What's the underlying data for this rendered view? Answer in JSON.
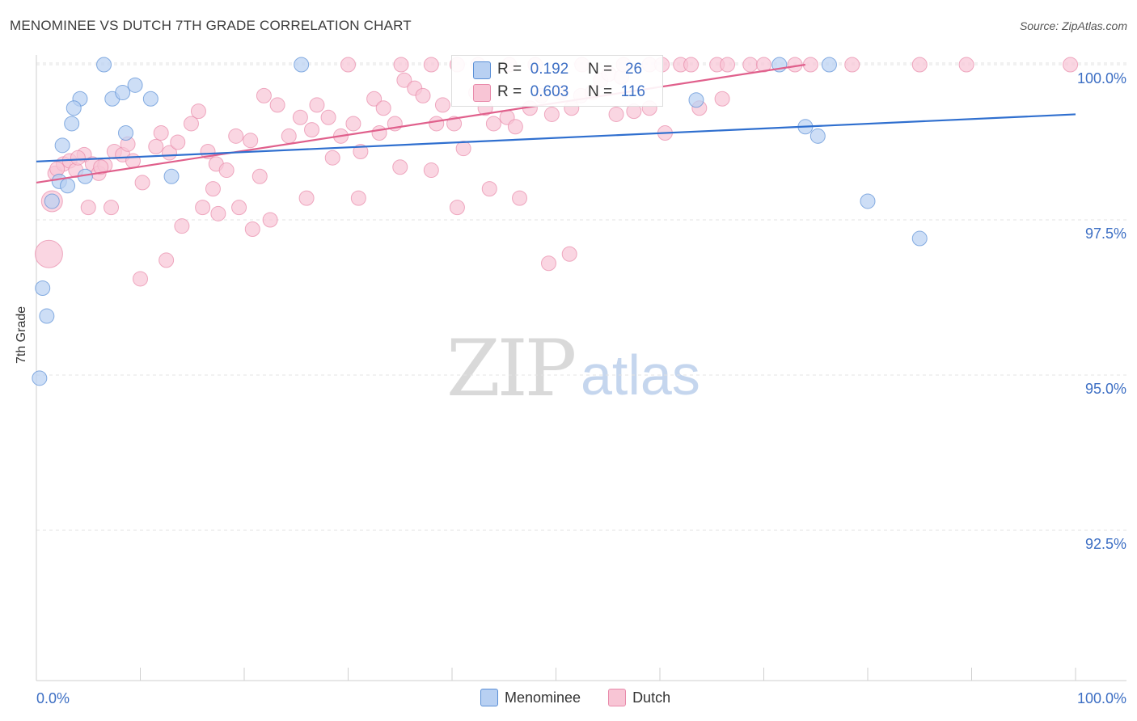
{
  "title": "MENOMINEE VS DUTCH 7TH GRADE CORRELATION CHART",
  "source": "Source: ZipAtlas.com",
  "watermark": {
    "zip": "ZIP",
    "atlas": "atlas"
  },
  "stats": {
    "row1": {
      "r_label": "R =",
      "r_value": "0.192",
      "n_label": "N =",
      "n_value": "26"
    },
    "row2": {
      "r_label": "R =",
      "r_value": "0.603",
      "n_label": "N =",
      "n_value": "116"
    }
  },
  "legend": {
    "menominee": "Menominee",
    "dutch": "Dutch"
  },
  "colors": {
    "menominee_fill": "#b8d0f2",
    "menominee_stroke": "#5a8fd6",
    "menominee_line": "#2f6fcf",
    "dutch_fill": "#f8c5d5",
    "dutch_stroke": "#e88aaa",
    "dutch_line": "#e0608c",
    "tick_text": "#3d6fc4"
  },
  "chart_data": {
    "type": "scatter",
    "title": "MENOMINEE VS DUTCH 7TH GRADE CORRELATION CHART",
    "xlabel": "",
    "ylabel": "7th Grade",
    "xlim": [
      0,
      100
    ],
    "ylim": [
      90.0,
      100.3
    ],
    "x_tick_labels": [
      "0.0%",
      "100.0%"
    ],
    "y_ticks": [
      100.0,
      97.5,
      95.0,
      92.5
    ],
    "y_tick_labels": [
      "100.0%",
      "97.5%",
      "95.0%",
      "92.5%"
    ],
    "grid": true,
    "legend_position": "bottom",
    "series": [
      {
        "name": "Menominee",
        "r": 0.192,
        "n": 26,
        "trend": {
          "x": [
            0,
            100
          ],
          "y": [
            98.44,
            99.2
          ]
        },
        "points": [
          [
            6.5,
            100.0
          ],
          [
            25.5,
            100.0
          ],
          [
            7.3,
            99.45
          ],
          [
            8.3,
            99.55
          ],
          [
            9.5,
            99.67
          ],
          [
            11.0,
            99.45
          ],
          [
            4.2,
            99.45
          ],
          [
            3.6,
            99.3
          ],
          [
            3.4,
            99.05
          ],
          [
            2.5,
            98.7
          ],
          [
            2.2,
            98.12
          ],
          [
            3.0,
            98.05
          ],
          [
            1.5,
            97.8
          ],
          [
            4.7,
            98.2
          ],
          [
            8.6,
            98.9
          ],
          [
            13.0,
            98.2
          ],
          [
            0.6,
            96.4
          ],
          [
            1.0,
            95.95
          ],
          [
            0.3,
            94.95
          ],
          [
            71.5,
            100.0
          ],
          [
            76.3,
            100.0
          ],
          [
            63.5,
            99.43
          ],
          [
            74.0,
            99.0
          ],
          [
            75.2,
            98.85
          ],
          [
            80.0,
            97.8
          ],
          [
            85.0,
            97.2
          ]
        ],
        "sizes": []
      },
      {
        "name": "Dutch",
        "r": 0.603,
        "n": 116,
        "trend": {
          "x": [
            0,
            74
          ],
          "y": [
            98.1,
            100.0
          ]
        },
        "points": [
          [
            1.5,
            97.8
          ],
          [
            1.2,
            96.95
          ],
          [
            1.8,
            98.25
          ],
          [
            2.6,
            98.4
          ],
          [
            3.2,
            98.45
          ],
          [
            3.8,
            98.3
          ],
          [
            4.6,
            98.55
          ],
          [
            5.4,
            98.4
          ],
          [
            6.0,
            98.25
          ],
          [
            6.6,
            98.38
          ],
          [
            7.5,
            98.6
          ],
          [
            8.3,
            98.55
          ],
          [
            8.8,
            98.72
          ],
          [
            9.3,
            98.45
          ],
          [
            10.2,
            98.1
          ],
          [
            11.5,
            98.68
          ],
          [
            12.8,
            98.58
          ],
          [
            13.6,
            98.75
          ],
          [
            14.9,
            99.05
          ],
          [
            15.6,
            99.25
          ],
          [
            16.5,
            98.6
          ],
          [
            17.3,
            98.4
          ],
          [
            18.3,
            98.3
          ],
          [
            19.2,
            98.85
          ],
          [
            20.6,
            98.78
          ],
          [
            21.9,
            99.5
          ],
          [
            23.2,
            99.35
          ],
          [
            24.3,
            98.85
          ],
          [
            25.4,
            99.15
          ],
          [
            26.5,
            98.95
          ],
          [
            27.0,
            99.35
          ],
          [
            28.1,
            99.15
          ],
          [
            29.3,
            98.85
          ],
          [
            30.5,
            99.05
          ],
          [
            31.2,
            98.6
          ],
          [
            32.5,
            99.45
          ],
          [
            33.4,
            99.3
          ],
          [
            34.5,
            99.05
          ],
          [
            35.4,
            99.75
          ],
          [
            36.4,
            99.62
          ],
          [
            37.2,
            99.5
          ],
          [
            38.0,
            98.3
          ],
          [
            39.1,
            99.35
          ],
          [
            40.2,
            99.05
          ],
          [
            41.1,
            98.65
          ],
          [
            42.3,
            99.55
          ],
          [
            43.2,
            99.3
          ],
          [
            44.0,
            99.05
          ],
          [
            45.3,
            99.15
          ],
          [
            46.1,
            99.0
          ],
          [
            47.5,
            99.3
          ],
          [
            48.6,
            99.5
          ],
          [
            49.6,
            99.2
          ],
          [
            50.5,
            99.55
          ],
          [
            51.5,
            99.3
          ],
          [
            52.4,
            99.5
          ],
          [
            53.5,
            99.55
          ],
          [
            54.3,
            99.75
          ],
          [
            55.1,
            99.85
          ],
          [
            56.3,
            99.8
          ],
          [
            57.5,
            99.25
          ],
          [
            59.0,
            99.3
          ],
          [
            62.0,
            100.0
          ],
          [
            63.8,
            99.3
          ],
          [
            68.7,
            100.0
          ],
          [
            73.0,
            100.0
          ],
          [
            14.0,
            97.4
          ],
          [
            16.0,
            97.7
          ],
          [
            19.5,
            97.7
          ],
          [
            20.8,
            97.35
          ],
          [
            22.5,
            97.5
          ],
          [
            12.5,
            96.85
          ],
          [
            17.5,
            97.6
          ],
          [
            26.0,
            97.85
          ],
          [
            31.0,
            97.85
          ],
          [
            40.5,
            97.7
          ],
          [
            43.6,
            98.0
          ],
          [
            46.5,
            97.85
          ],
          [
            49.3,
            96.8
          ],
          [
            51.3,
            96.95
          ],
          [
            5.0,
            97.7
          ],
          [
            7.2,
            97.7
          ],
          [
            10.0,
            96.55
          ],
          [
            17.0,
            98.0
          ],
          [
            21.5,
            98.2
          ],
          [
            28.5,
            98.5
          ],
          [
            33.0,
            98.9
          ],
          [
            35.0,
            98.35
          ],
          [
            38.5,
            99.05
          ],
          [
            55.8,
            99.2
          ],
          [
            60.5,
            98.9
          ],
          [
            66.0,
            99.45
          ],
          [
            74.5,
            100.0
          ],
          [
            78.5,
            100.0
          ],
          [
            85.0,
            100.0
          ],
          [
            89.5,
            100.0
          ],
          [
            99.5,
            100.0
          ],
          [
            30.0,
            100.0
          ],
          [
            35.1,
            100.0
          ],
          [
            38.0,
            100.0
          ],
          [
            40.5,
            100.0
          ],
          [
            42.5,
            100.0
          ],
          [
            45.5,
            100.0
          ],
          [
            48.0,
            100.0
          ],
          [
            52.5,
            100.0
          ],
          [
            56.5,
            100.0
          ],
          [
            59.0,
            100.0
          ],
          [
            60.2,
            100.0
          ],
          [
            63.0,
            100.0
          ],
          [
            65.5,
            100.0
          ],
          [
            66.5,
            100.0
          ],
          [
            70.0,
            100.0
          ],
          [
            12.0,
            98.9
          ],
          [
            6.2,
            98.35
          ],
          [
            2.0,
            98.32
          ],
          [
            4.0,
            98.5
          ]
        ],
        "sizes": []
      }
    ]
  }
}
